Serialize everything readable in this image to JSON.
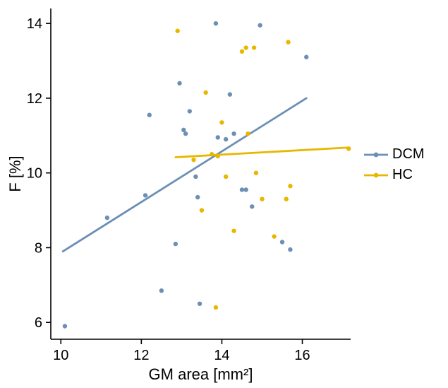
{
  "chart_data": {
    "type": "scatter",
    "title": "",
    "xlabel": "GM area [mm²]",
    "ylabel": "F [%]",
    "xlim": [
      9.75,
      17.2
    ],
    "ylim": [
      5.55,
      14.4
    ],
    "xticks": [
      10,
      12,
      14,
      16
    ],
    "yticks": [
      6,
      8,
      10,
      12,
      14
    ],
    "grid": false,
    "legend_position": "right",
    "series": [
      {
        "name": "DCM",
        "color": "#6d8fb5",
        "points": [
          [
            10.1,
            5.9
          ],
          [
            11.15,
            8.8
          ],
          [
            12.1,
            9.4
          ],
          [
            12.2,
            11.55
          ],
          [
            12.5,
            6.85
          ],
          [
            12.85,
            8.1
          ],
          [
            12.95,
            12.4
          ],
          [
            13.05,
            11.15
          ],
          [
            13.1,
            11.05
          ],
          [
            13.2,
            11.65
          ],
          [
            13.35,
            9.9
          ],
          [
            13.4,
            9.35
          ],
          [
            13.45,
            6.5
          ],
          [
            13.85,
            14.0
          ],
          [
            13.9,
            10.95
          ],
          [
            14.1,
            10.9
          ],
          [
            14.2,
            12.1
          ],
          [
            14.3,
            11.05
          ],
          [
            14.5,
            9.55
          ],
          [
            14.6,
            9.55
          ],
          [
            14.75,
            9.1
          ],
          [
            14.95,
            13.95
          ],
          [
            15.5,
            8.15
          ],
          [
            15.7,
            7.95
          ],
          [
            16.1,
            13.1
          ]
        ],
        "trend_line": {
          "x1": 10.05,
          "y1": 7.9,
          "x2": 16.1,
          "y2": 12.0
        }
      },
      {
        "name": "HC",
        "color": "#e7b800",
        "points": [
          [
            12.9,
            13.8
          ],
          [
            13.3,
            10.35
          ],
          [
            13.5,
            9.0
          ],
          [
            13.6,
            12.15
          ],
          [
            13.75,
            10.5
          ],
          [
            13.85,
            6.4
          ],
          [
            13.9,
            10.45
          ],
          [
            14.0,
            11.35
          ],
          [
            14.1,
            9.9
          ],
          [
            14.3,
            8.45
          ],
          [
            14.5,
            13.25
          ],
          [
            14.6,
            13.35
          ],
          [
            14.65,
            11.05
          ],
          [
            14.8,
            13.35
          ],
          [
            14.85,
            10.0
          ],
          [
            15.0,
            9.3
          ],
          [
            15.3,
            8.3
          ],
          [
            15.6,
            9.3
          ],
          [
            15.65,
            13.5
          ],
          [
            15.7,
            9.65
          ],
          [
            17.15,
            10.65
          ]
        ],
        "trend_line": {
          "x1": 12.85,
          "y1": 10.42,
          "x2": 17.15,
          "y2": 10.68
        }
      }
    ]
  }
}
